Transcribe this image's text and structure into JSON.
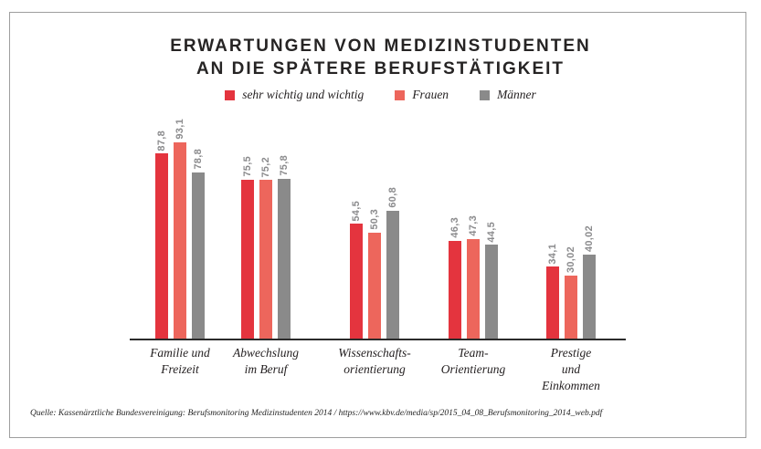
{
  "title": {
    "line1": "ERWARTUNGEN VON MEDIZINSTUDENTEN",
    "line2": "AN DIE SPÄTERE BERUFSTÄTIGKEIT"
  },
  "legend": [
    {
      "label": "sehr wichtig und wichtig",
      "color": "#e4343e"
    },
    {
      "label": "Frauen",
      "color": "#ed665c"
    },
    {
      "label": "Männer",
      "color": "#8a8a8a"
    }
  ],
  "chart_data": {
    "type": "bar",
    "title": "Erwartungen von Medizinstudenten an die spätere Berufstätigkeit",
    "categories": [
      "Familie und\nFreizeit",
      "Abwechslung\nim Beruf",
      "Wissenschafts-\norientierung",
      "Team-\nOrientierung",
      "Prestige und\nEinkommen"
    ],
    "series": [
      {
        "name": "sehr wichtig und wichtig",
        "color": "#e4343e",
        "values": [
          87.8,
          75.5,
          54.5,
          46.3,
          34.1
        ],
        "value_labels": [
          "87,8",
          "75,5",
          "54,5",
          "46,3",
          "34,1"
        ]
      },
      {
        "name": "Frauen",
        "color": "#ed665c",
        "values": [
          93.1,
          75.2,
          50.3,
          47.3,
          30.02
        ],
        "value_labels": [
          "93,1",
          "75,2",
          "50,3",
          "47,3",
          "30,02"
        ]
      },
      {
        "name": "Männer",
        "color": "#8a8a8a",
        "values": [
          78.8,
          75.8,
          60.8,
          44.5,
          40.02
        ],
        "value_labels": [
          "78,8",
          "75,8",
          "60,8",
          "44,5",
          "40,02"
        ]
      }
    ],
    "xlabel": "",
    "ylabel": "",
    "ylim": [
      0,
      100
    ],
    "grid": false,
    "legend_position": "top",
    "value_label_rotation": 90,
    "value_label_color": "#8b8b8d",
    "axis_color": "#2b2b2b"
  },
  "source": "Quelle: Kassenärztliche Bundesvereinigung: Berufsmonitoring Medizinstudenten 2014 / https://www.kbv.de/media/sp/2015_04_08_Berufsmonitoring_2014_web.pdf"
}
